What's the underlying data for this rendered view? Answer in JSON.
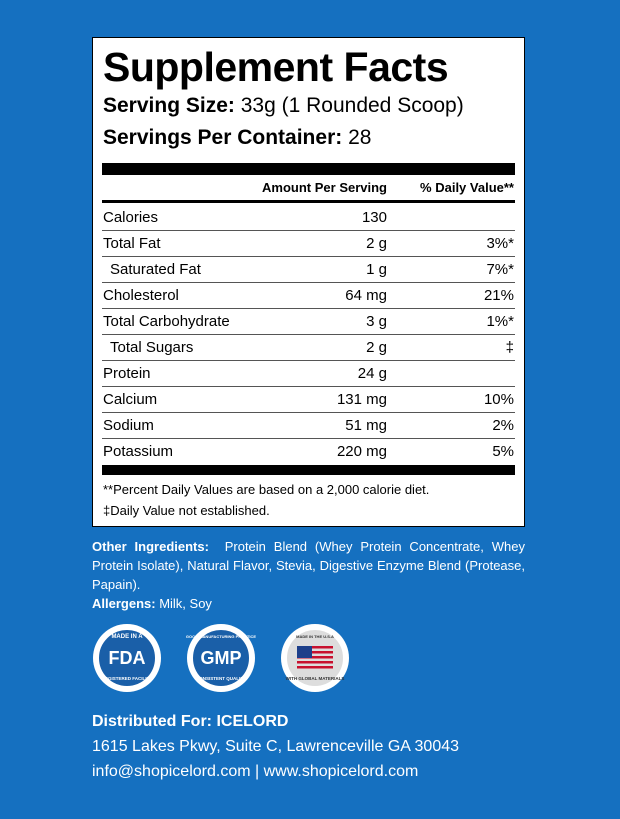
{
  "panel": {
    "title": "Supplement Facts",
    "serving_size": {
      "label": "Serving Size:",
      "value": "33g (1 Rounded Scoop)"
    },
    "servings_per_container": {
      "label": "Servings Per Container:",
      "value": "28"
    },
    "header": {
      "amount": "Amount Per Serving",
      "daily_value": "% Daily Value**"
    },
    "rows": [
      {
        "name": "Calories",
        "amount": "130"
      },
      {
        "name": "Total Fat",
        "amount": "2 g",
        "daily_value": "3%*"
      },
      {
        "name": "Saturated Fat",
        "amount": "1 g",
        "daily_value": "7%*",
        "indent": true
      },
      {
        "name": "Cholesterol",
        "amount": "64 mg",
        "daily_value": "21%"
      },
      {
        "name": "Total Carbohydrate",
        "amount": "3 g",
        "daily_value": "1%*"
      },
      {
        "name": "Total Sugars",
        "amount": "2 g",
        "daily_value": "‡",
        "indent": true
      },
      {
        "name": "Protein",
        "amount": "24 g"
      },
      {
        "name": "Calcium",
        "amount": "131 mg",
        "daily_value": "10%"
      },
      {
        "name": "Sodium",
        "amount": "51 mg",
        "daily_value": "2%"
      },
      {
        "name": "Potassium",
        "amount": "220 mg",
        "daily_value": "5%"
      }
    ],
    "footnotes": [
      "**Percent Daily Values are based on a 2,000 calorie diet.",
      "‡Daily Value not established."
    ]
  },
  "other_ingredients": {
    "label": "Other Ingredients:",
    "text": "Protein Blend (Whey Protein Concentrate, Whey Protein Isolate), Natural Flavor, Stevia, Digestive Enzyme Blend (Protease, Papain)."
  },
  "allergens": {
    "label": "Allergens:",
    "text": "Milk, Soy"
  },
  "badges": [
    {
      "top": "MADE IN A",
      "main": "FDA",
      "bottom": "REGISTERED FACILITY"
    },
    {
      "top": "GOOD MANUFACTURING PRACTICE",
      "main": "GMP",
      "bottom": "CONSISTENT QUALITY"
    },
    {
      "top": "MADE IN THE U.S.A",
      "bottom": "WITH GLOBAL MATERIALS"
    }
  ],
  "distributor": {
    "heading": "Distributed For: ICELORD",
    "address": "1615 Lakes Pkwy, Suite C, Lawrenceville GA 30043",
    "contact": "info@shopicelord.com | www.shopicelord.com"
  }
}
